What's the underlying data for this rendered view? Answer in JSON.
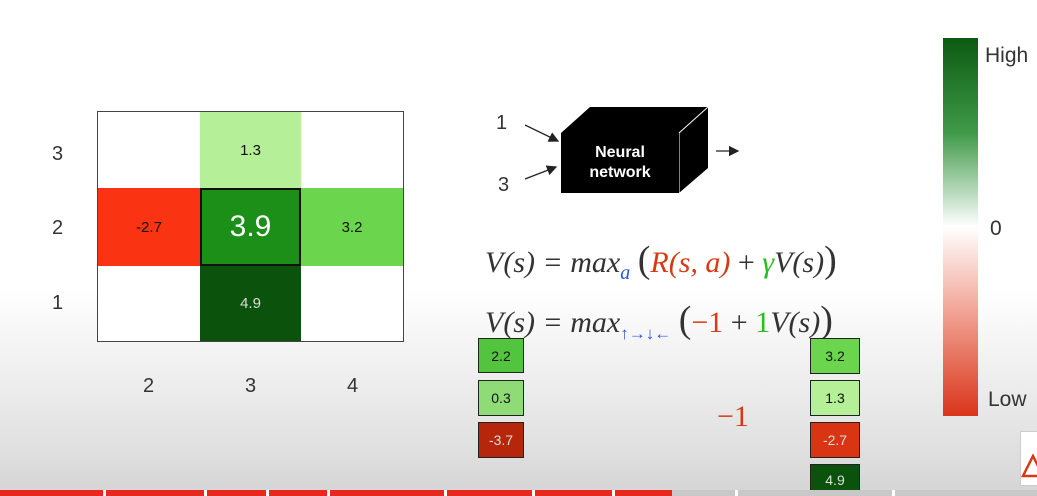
{
  "grid": {
    "y_labels": [
      "3",
      "2",
      "1"
    ],
    "x_labels": [
      "2",
      "3",
      "4"
    ],
    "cells": {
      "top_center": "1.3",
      "mid_left": "-2.7",
      "mid_center": "3.9",
      "mid_right": "3.2",
      "bottom_center": "4.9"
    }
  },
  "network": {
    "input_top": "1",
    "input_bottom": "3",
    "label_line1": "Neural",
    "label_line2": "network"
  },
  "equations": {
    "eq1_lhs": "V(s) = max",
    "eq1_sub": "a",
    "eq1_open": "(",
    "eq1_r": "R(s, a)",
    "eq1_plus": " + ",
    "eq1_gamma": "γ",
    "eq1_v": "V(s)",
    "eq1_close": ")",
    "eq2_lhs": "V(s) = max",
    "eq2_sub": "↑→↓←",
    "eq2_open": "(",
    "eq2_neg": "−1",
    "eq2_plus": " + ",
    "eq2_one": "1",
    "eq2_v": "V(s)",
    "eq2_close": ")",
    "reward_label": "−1"
  },
  "left_values": [
    "2.2",
    "0.3",
    "-3.7"
  ],
  "right_values": [
    "3.2",
    "1.3",
    "-2.7",
    "4.9"
  ],
  "legend": {
    "high": "High",
    "zero": "0",
    "low": "Low"
  }
}
